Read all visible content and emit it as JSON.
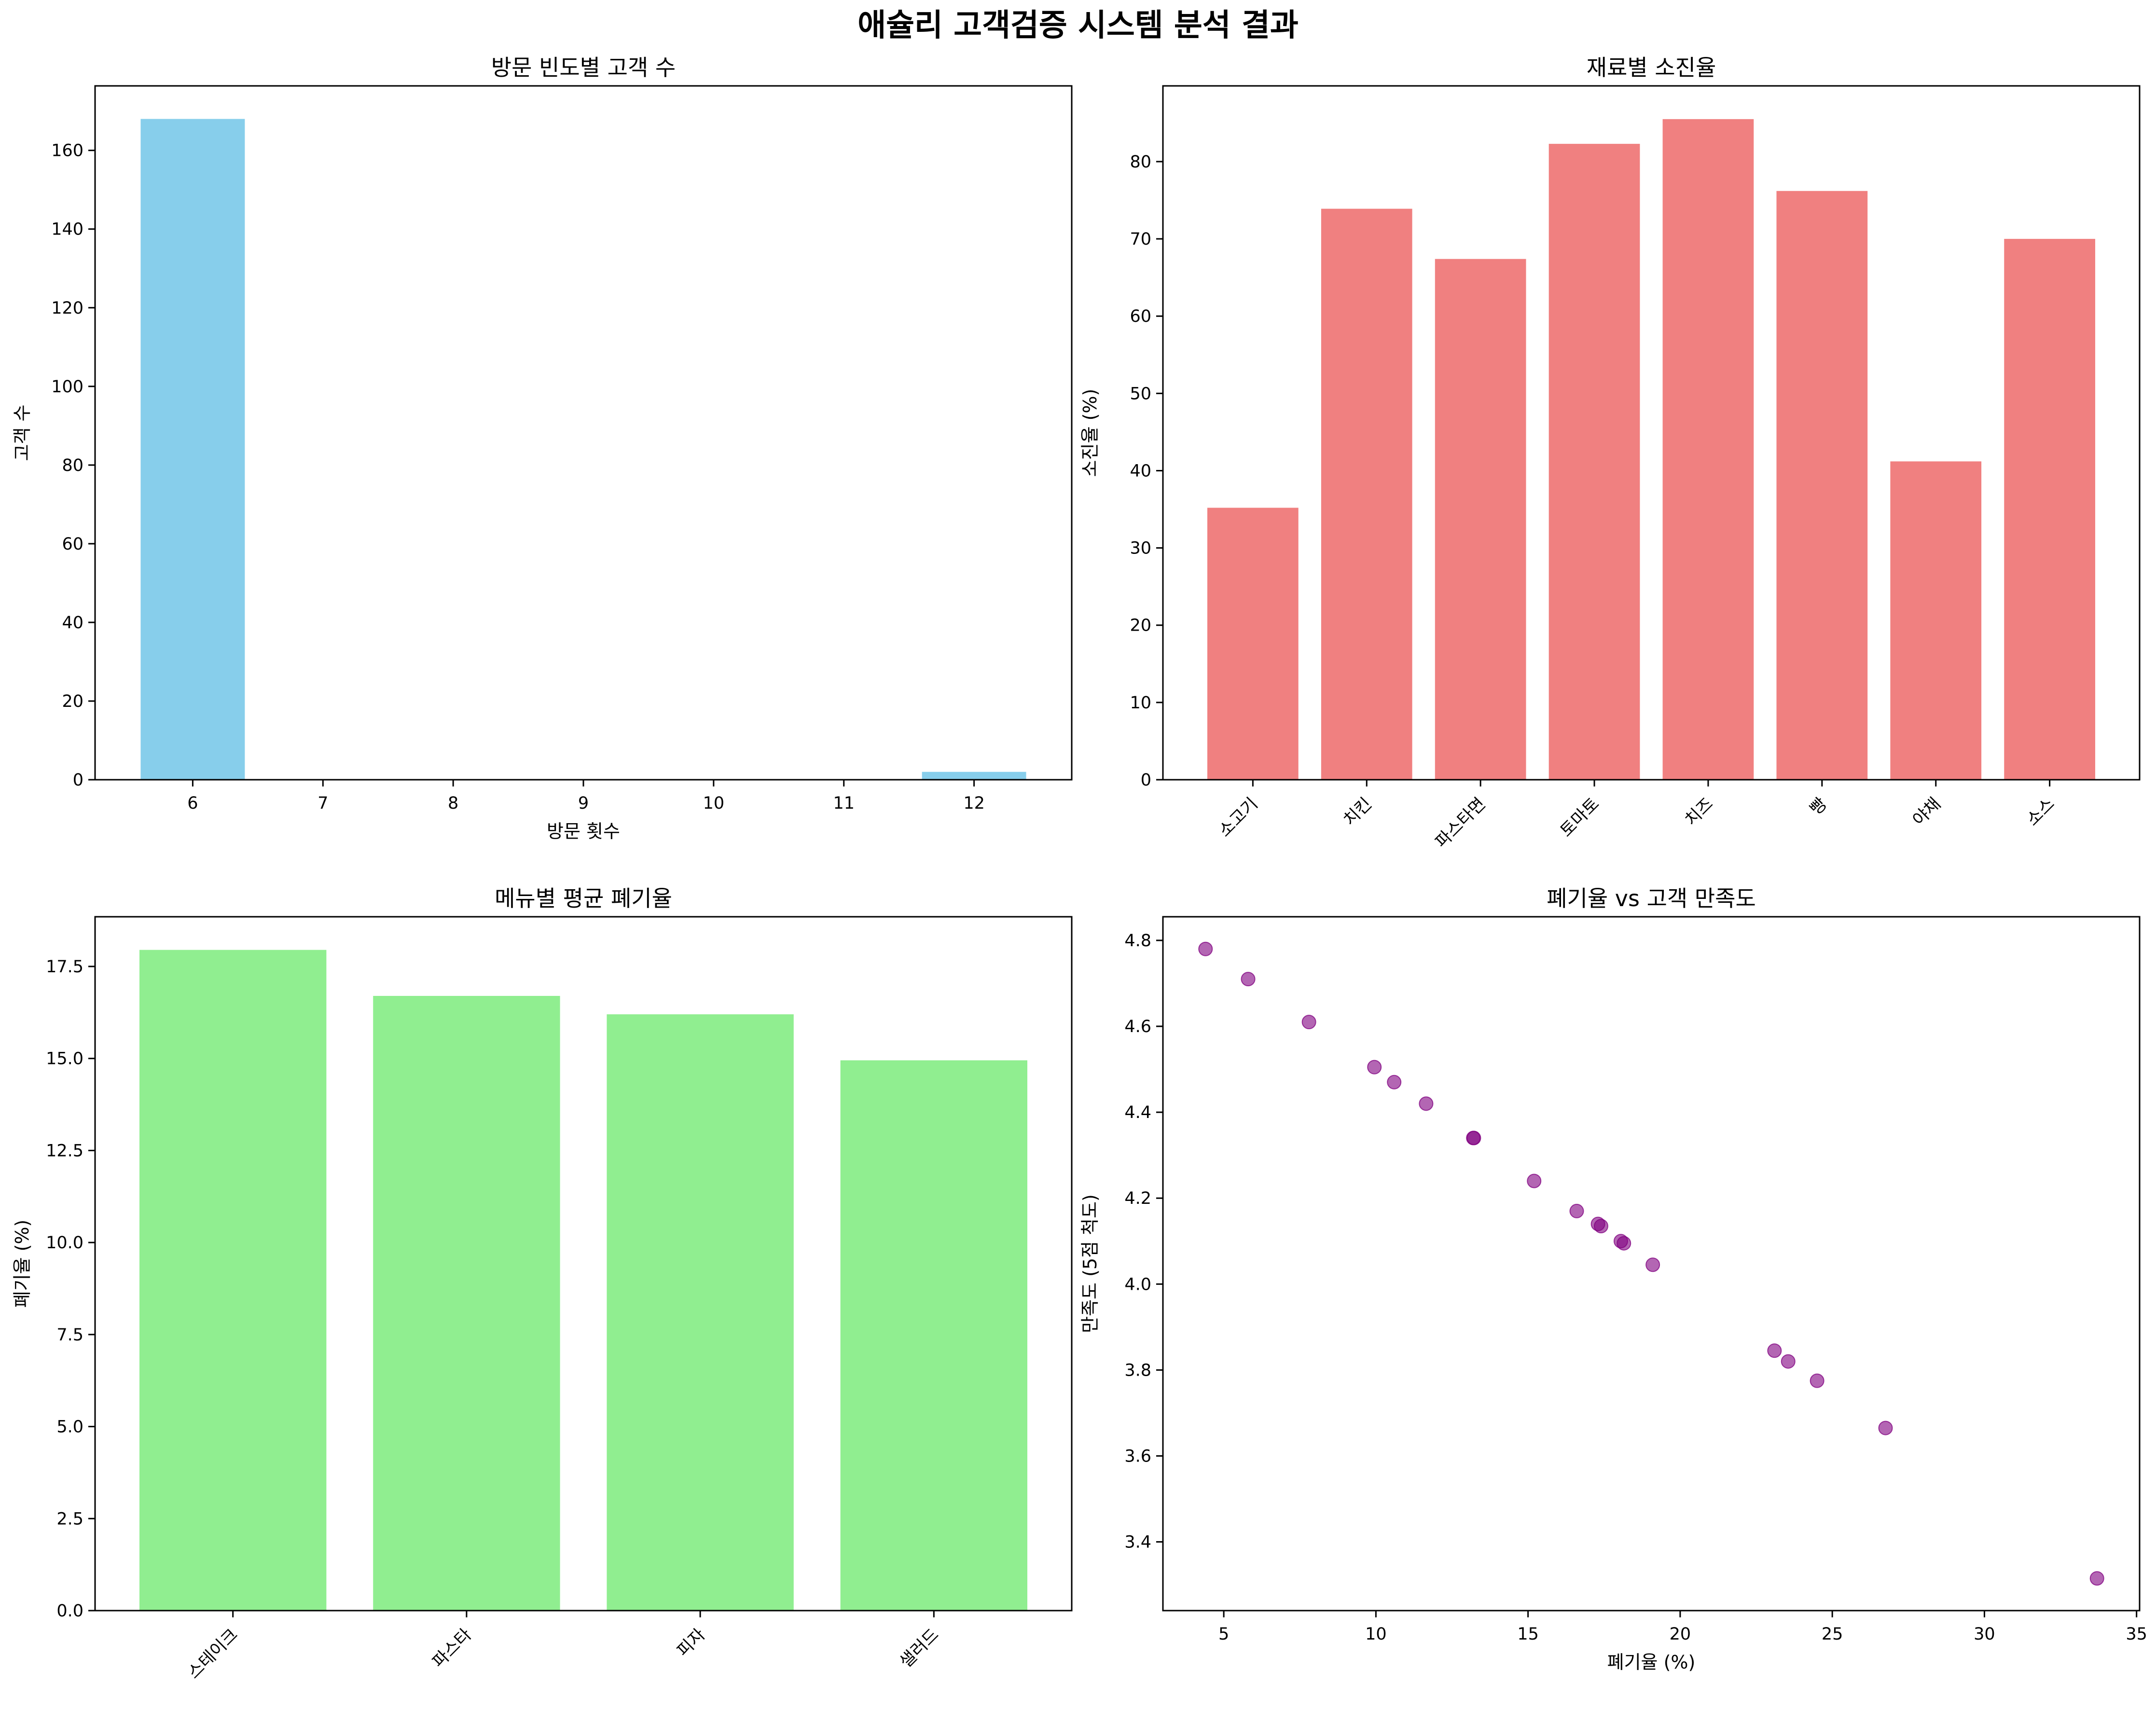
{
  "suptitle": "애슐리 고객검증 시스템 분석 결과",
  "colors": {
    "visit_bars": "#87ceeb",
    "depletion_bars": "#f08080",
    "waste_bars": "#90ee90",
    "scatter_points": "#800080"
  },
  "chart_data": [
    {
      "type": "bar",
      "title": "방문 빈도별 고객 수",
      "xlabel": "방문 횟수",
      "ylabel": "고객 수",
      "categories": [
        6,
        12
      ],
      "values": [
        168,
        2
      ],
      "xlim": [
        5.25,
        12.75
      ],
      "xticks": [
        6,
        7,
        8,
        9,
        10,
        11,
        12
      ],
      "ylim": [
        0,
        176.4
      ],
      "yticks": [
        0,
        20,
        40,
        60,
        80,
        100,
        120,
        140,
        160
      ],
      "bar_width": 0.8,
      "grid": false
    },
    {
      "type": "bar",
      "title": "재료별 소진율",
      "xlabel": "",
      "ylabel": "소진율 (%)",
      "categories": [
        "소고기",
        "치킨",
        "파스타면",
        "토마토",
        "치즈",
        "빵",
        "야채",
        "소스"
      ],
      "values": [
        35.2,
        73.9,
        67.4,
        82.3,
        85.5,
        76.2,
        41.2,
        70.0
      ],
      "ylim": [
        0,
        89.8
      ],
      "yticks": [
        0,
        10,
        20,
        30,
        40,
        50,
        60,
        70,
        80
      ],
      "grid": false
    },
    {
      "type": "bar",
      "title": "메뉴별 평균 폐기율",
      "xlabel": "",
      "ylabel": "폐기율 (%)",
      "categories": [
        "스테이크",
        "파스타",
        "피자",
        "샐러드"
      ],
      "values": [
        17.95,
        16.7,
        16.2,
        14.95
      ],
      "ylim": [
        0,
        18.85
      ],
      "yticks": [
        "0.0",
        "2.5",
        "5.0",
        "7.5",
        "10.0",
        "12.5",
        "15.0",
        "17.5"
      ],
      "grid": false
    },
    {
      "type": "scatter",
      "title": "폐기율 vs 고객 만족도",
      "xlabel": "폐기율 (%)",
      "ylabel": "만족도 (5점 척도)",
      "x": [
        4.4,
        5.8,
        7.8,
        9.95,
        10.6,
        11.65,
        13.2,
        13.22,
        15.2,
        16.6,
        17.3,
        17.4,
        18.05,
        18.15,
        19.1,
        23.1,
        23.55,
        24.5,
        26.75,
        33.7
      ],
      "y": [
        4.78,
        4.71,
        4.61,
        4.505,
        4.47,
        4.42,
        4.34,
        4.34,
        4.24,
        4.17,
        4.14,
        4.135,
        4.1,
        4.095,
        4.045,
        3.845,
        3.82,
        3.775,
        3.665,
        3.315
      ],
      "xlim": [
        3.0,
        35.1
      ],
      "xticks": [
        5,
        10,
        15,
        20,
        25,
        30,
        35
      ],
      "ylim": [
        3.24,
        4.855
      ],
      "yticks": [
        "3.4",
        "3.6",
        "3.8",
        "4.0",
        "4.2",
        "4.4",
        "4.6",
        "4.8"
      ],
      "grid": false
    }
  ]
}
